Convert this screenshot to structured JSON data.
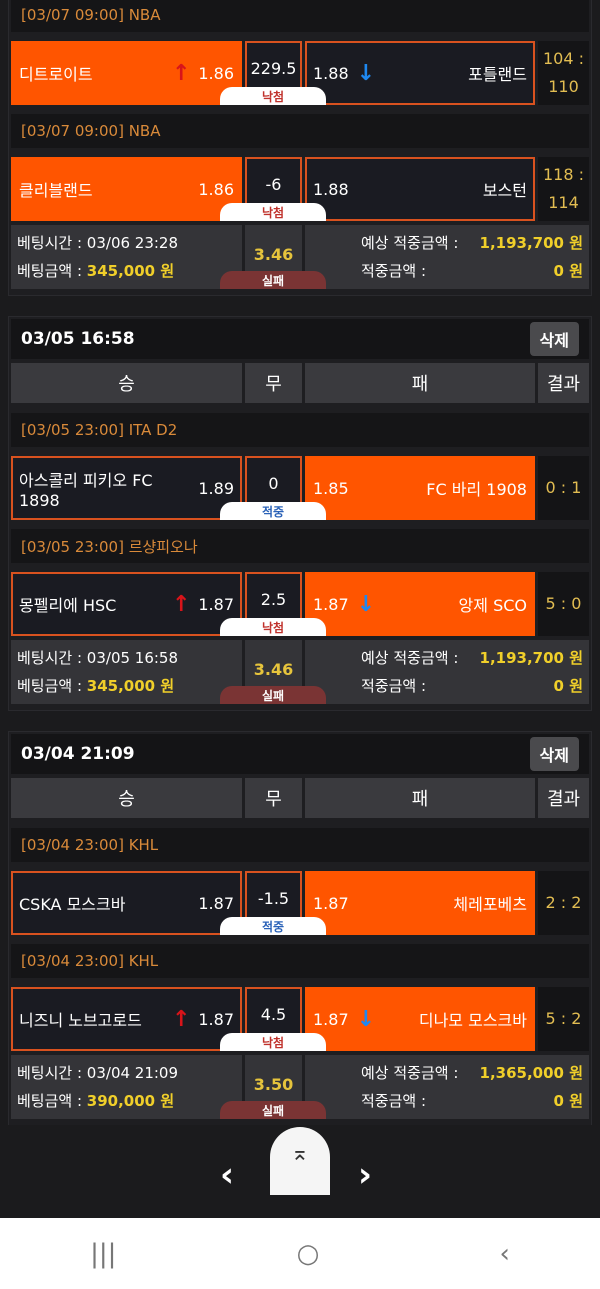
{
  "colors": {
    "accent": "#ff5500",
    "league": "#d98a3a",
    "amount": "#f0cf2a"
  },
  "labels": {
    "bet_time": "베팅시간 : ",
    "bet_amount": "베팅금액 : ",
    "expected": "예상 적중금액 :",
    "won": "적중금액 :",
    "fail": "실패",
    "delete": "삭제"
  },
  "columns": [
    "승",
    "무",
    "패",
    "결과"
  ],
  "bets": [
    {
      "header": null,
      "matches": [
        {
          "league": "[03/07 09:00] NBA",
          "home": "디트로이트",
          "home_odds": "1.86",
          "home_arrow": "up",
          "line": "229.5",
          "away_odds": "1.88",
          "away_arrow": "down",
          "away": "포틀랜드",
          "score": [
            "104 :",
            "110"
          ],
          "selected": "home",
          "status": "낙첨",
          "status_type": "lost"
        },
        {
          "league": "[03/07 09:00] NBA",
          "home": "클리블랜드",
          "home_odds": "1.86",
          "home_arrow": null,
          "line": "-6",
          "away_odds": "1.88",
          "away_arrow": null,
          "away": "보스턴",
          "score": [
            "118 :",
            "114"
          ],
          "selected": "home",
          "status": "낙첨",
          "status_type": "lost"
        }
      ],
      "summary": {
        "time": "03/06 23:28",
        "amount": "345,000 원",
        "odds": "3.46",
        "expected": "1,193,700 원",
        "won": "0 원"
      }
    },
    {
      "header": "03/05 16:58",
      "matches": [
        {
          "league": "[03/05 23:00] ITA D2",
          "home": "아스콜리 피키오 FC 1898",
          "home_odds": "1.89",
          "home_arrow": null,
          "line": "0",
          "away_odds": "1.85",
          "away_arrow": null,
          "away": "FC 바리 1908",
          "score": [
            "0 : 1"
          ],
          "selected": "away",
          "status": "적중",
          "status_type": "hit"
        },
        {
          "league": "[03/05 23:00] 르샹피오나",
          "home": "몽펠리에 HSC",
          "home_odds": "1.87",
          "home_arrow": "up",
          "line": "2.5",
          "away_odds": "1.87",
          "away_arrow": "down",
          "away": "앙제 SCO",
          "score": [
            "5 : 0"
          ],
          "selected": "away",
          "status": "낙첨",
          "status_type": "lost"
        }
      ],
      "summary": {
        "time": "03/05 16:58",
        "amount": "345,000 원",
        "odds": "3.46",
        "expected": "1,193,700 원",
        "won": "0 원"
      }
    },
    {
      "header": "03/04 21:09",
      "matches": [
        {
          "league": "[03/04 23:00] KHL",
          "home": "CSKA 모스크바",
          "home_odds": "1.87",
          "home_arrow": null,
          "line": "-1.5",
          "away_odds": "1.87",
          "away_arrow": null,
          "away": "체레포베츠",
          "score": [
            "2 : 2"
          ],
          "selected": "away",
          "status": "적중",
          "status_type": "hit"
        },
        {
          "league": "[03/04 23:00] KHL",
          "home": "니즈니 노브고로드",
          "home_odds": "1.87",
          "home_arrow": "up",
          "line": "4.5",
          "away_odds": "1.87",
          "away_arrow": "down",
          "away": "디나모 모스크바",
          "score": [
            "5 : 2"
          ],
          "selected": "away",
          "status": "낙첨",
          "status_type": "lost"
        }
      ],
      "summary": {
        "time": "03/04 21:09",
        "amount": "390,000 원",
        "odds": "3.50",
        "expected": "1,365,000 원",
        "won": "0 원"
      }
    }
  ],
  "pager": {
    "prev": "‹",
    "next": "›",
    "top": "⌅"
  },
  "system_nav": {
    "recents": "|||",
    "home": "○",
    "back": "‹"
  }
}
